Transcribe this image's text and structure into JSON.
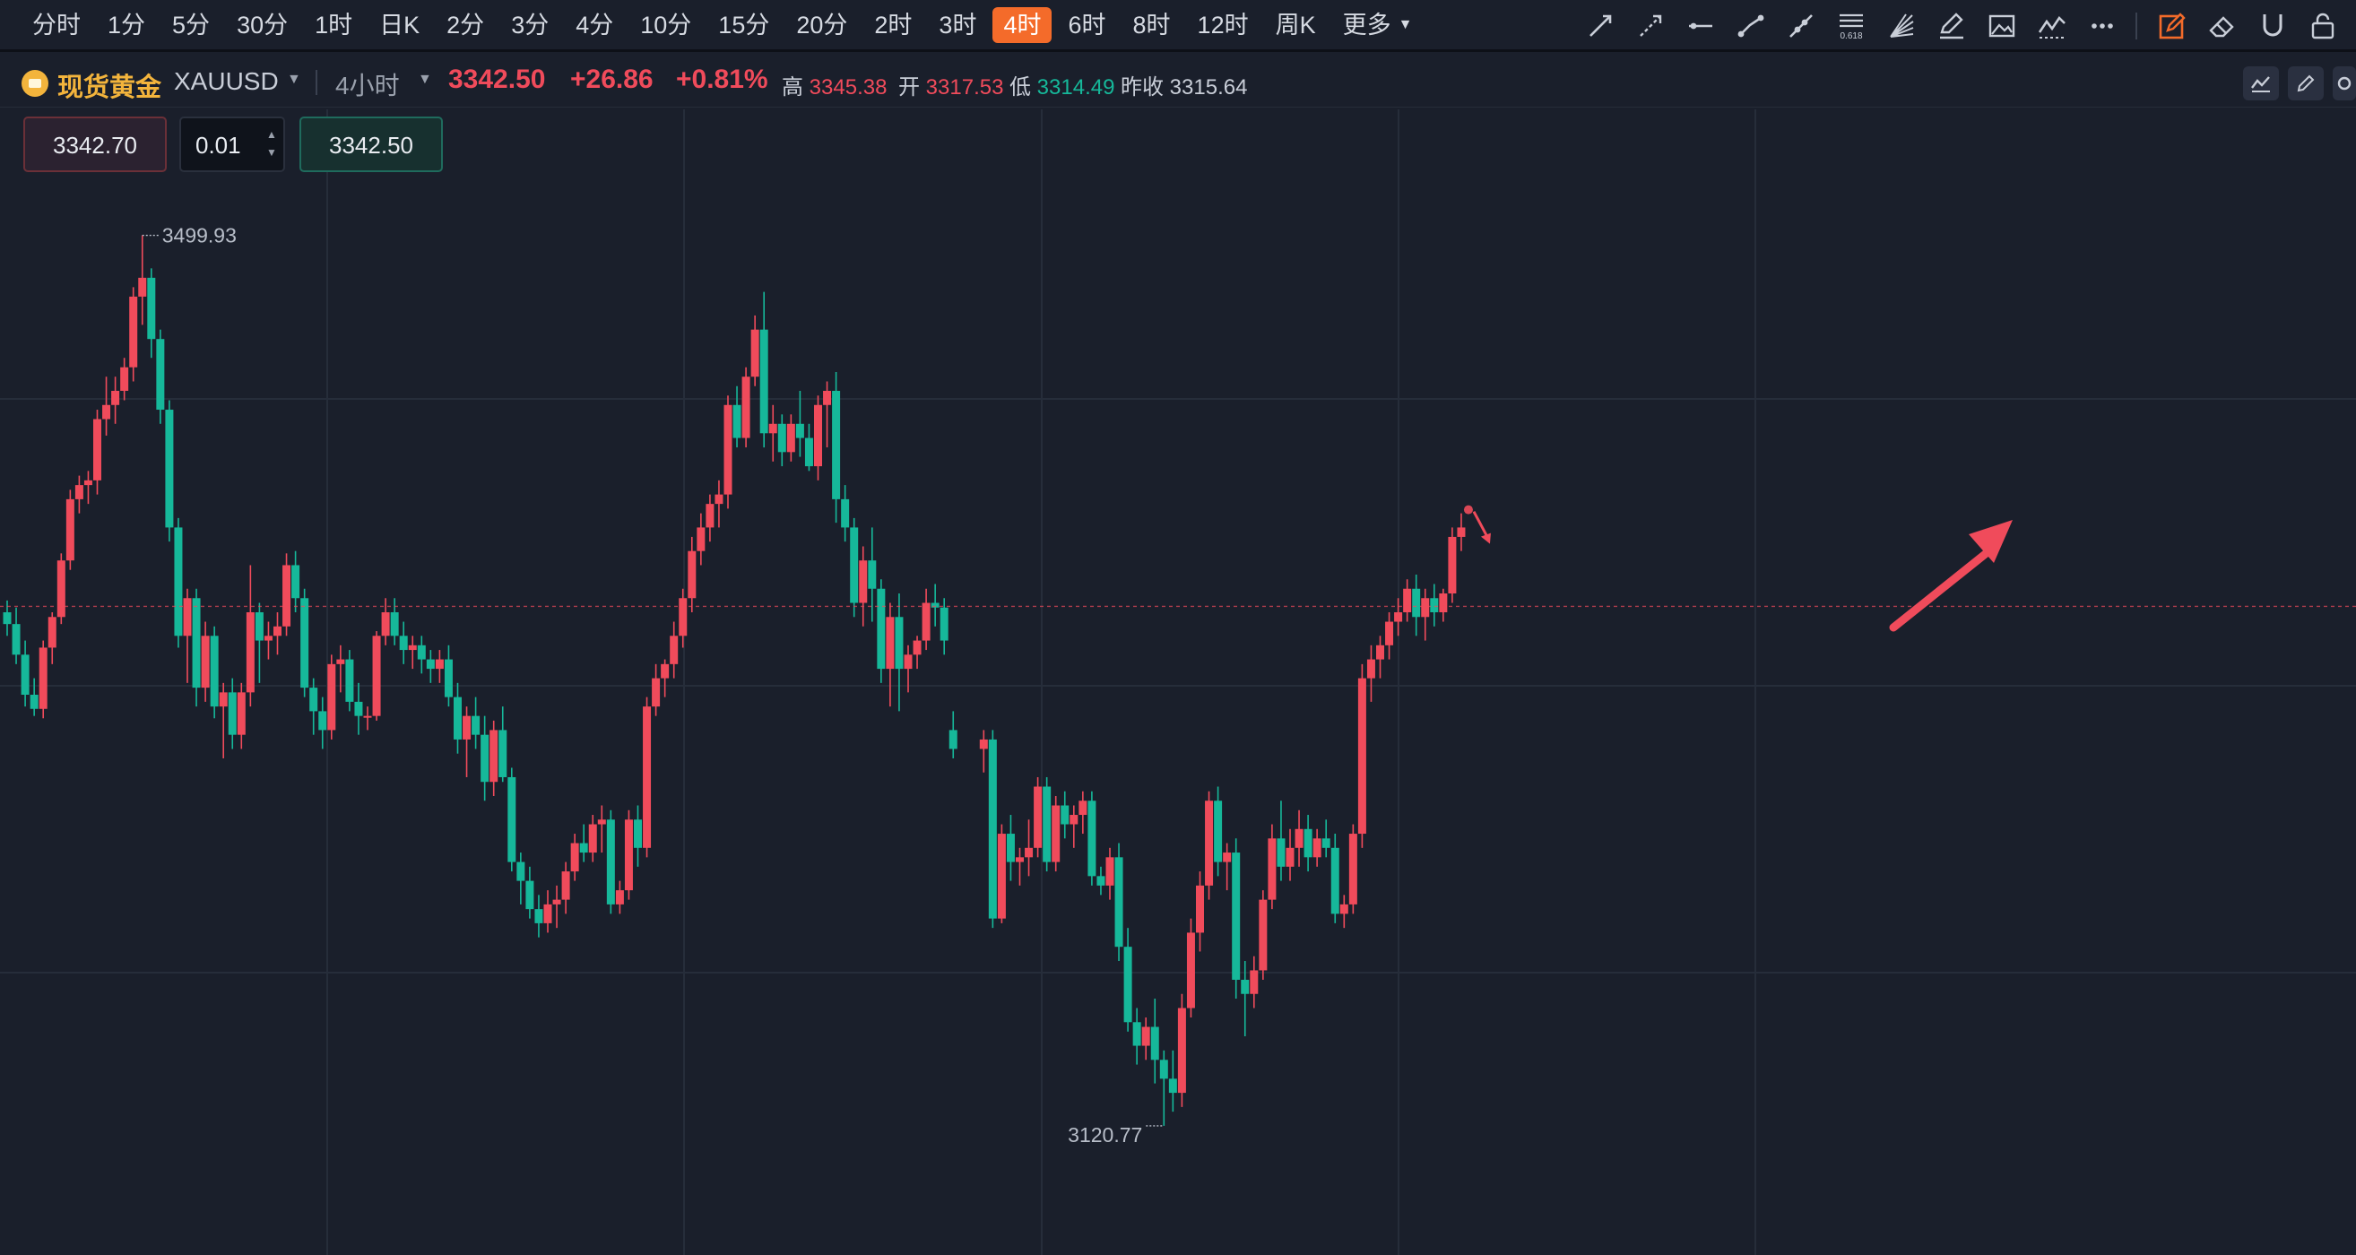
{
  "toolbar": {
    "periods": [
      "分时",
      "1分",
      "5分",
      "30分",
      "1时",
      "日K",
      "2分",
      "3分",
      "4分",
      "10分",
      "15分",
      "20分",
      "2时",
      "3时",
      "4时",
      "6时",
      "8时",
      "12时",
      "周K",
      "更多"
    ],
    "active_period": "4时",
    "drawing_tools": [
      "trend-line-icon",
      "ray-icon",
      "horizontal-line-icon",
      "segment-icon",
      "extended-line-icon",
      "fibonacci-icon",
      "fan-icon",
      "brush-icon",
      "image-icon",
      "wave-icon",
      "more-icon",
      "draw-mode-icon",
      "eraser-icon",
      "magnet-icon",
      "lock-icon"
    ]
  },
  "symbol": {
    "name": "现货黄金",
    "code": "XAUUSD",
    "interval": "4小时",
    "price": "3342.50",
    "change": "+26.86",
    "change_pct": "+0.81%",
    "high_label": "高",
    "high": "3345.38",
    "open_label": "开",
    "open": "3317.53",
    "low_label": "低",
    "low": "3314.49",
    "prev_close_label": "昨收",
    "prev_close": "3315.64"
  },
  "order": {
    "sell_price": "3342.70",
    "quantity": "0.01",
    "buy_price": "3342.50"
  },
  "colors": {
    "up": "#f04b5b",
    "down": "#16b89a",
    "background": "#1a1f2b",
    "accent": "#f46b2a",
    "gold": "#f3b43c"
  },
  "chart_data": {
    "type": "candlestick",
    "instrument": "XAUUSD",
    "interval": "4小时",
    "ylim": [
      3090,
      3520
    ],
    "price_line": 3342.5,
    "annotations": {
      "max": "3499.93",
      "min": "3120.77"
    },
    "candles": [
      [
        3340,
        3345,
        3330,
        3335
      ],
      [
        3335,
        3342,
        3318,
        3322
      ],
      [
        3322,
        3328,
        3300,
        3305
      ],
      [
        3305,
        3312,
        3296,
        3299
      ],
      [
        3299,
        3328,
        3295,
        3325
      ],
      [
        3325,
        3340,
        3318,
        3338
      ],
      [
        3338,
        3365,
        3335,
        3362
      ],
      [
        3362,
        3392,
        3358,
        3388
      ],
      [
        3388,
        3398,
        3382,
        3394
      ],
      [
        3394,
        3400,
        3386,
        3396
      ],
      [
        3396,
        3426,
        3390,
        3422
      ],
      [
        3422,
        3440,
        3415,
        3428
      ],
      [
        3428,
        3440,
        3420,
        3434
      ],
      [
        3434,
        3448,
        3430,
        3444
      ],
      [
        3444,
        3478,
        3438,
        3474
      ],
      [
        3474,
        3500,
        3462,
        3482
      ],
      [
        3482,
        3486,
        3448,
        3456
      ],
      [
        3456,
        3460,
        3420,
        3426
      ],
      [
        3426,
        3430,
        3370,
        3376
      ],
      [
        3376,
        3380,
        3325,
        3330
      ],
      [
        3330,
        3350,
        3310,
        3346
      ],
      [
        3346,
        3350,
        3300,
        3308
      ],
      [
        3308,
        3336,
        3302,
        3330
      ],
      [
        3330,
        3334,
        3295,
        3300
      ],
      [
        3300,
        3310,
        3278,
        3306
      ],
      [
        3306,
        3312,
        3282,
        3288
      ],
      [
        3288,
        3310,
        3282,
        3306
      ],
      [
        3306,
        3360,
        3300,
        3340
      ],
      [
        3340,
        3344,
        3310,
        3328
      ],
      [
        3328,
        3336,
        3320,
        3330
      ],
      [
        3330,
        3340,
        3322,
        3334
      ],
      [
        3334,
        3365,
        3330,
        3360
      ],
      [
        3360,
        3366,
        3340,
        3346
      ],
      [
        3346,
        3350,
        3304,
        3308
      ],
      [
        3308,
        3312,
        3288,
        3298
      ],
      [
        3298,
        3304,
        3282,
        3290
      ],
      [
        3290,
        3322,
        3286,
        3318
      ],
      [
        3318,
        3326,
        3306,
        3320
      ],
      [
        3320,
        3324,
        3298,
        3302
      ],
      [
        3302,
        3310,
        3288,
        3296
      ],
      [
        3296,
        3300,
        3290,
        3296
      ],
      [
        3296,
        3332,
        3294,
        3330
      ],
      [
        3330,
        3346,
        3326,
        3340
      ],
      [
        3340,
        3346,
        3326,
        3330
      ],
      [
        3330,
        3336,
        3318,
        3324
      ],
      [
        3324,
        3330,
        3316,
        3326
      ],
      [
        3326,
        3330,
        3314,
        3320
      ],
      [
        3320,
        3324,
        3310,
        3316
      ],
      [
        3316,
        3324,
        3310,
        3320
      ],
      [
        3320,
        3326,
        3300,
        3304
      ],
      [
        3304,
        3310,
        3280,
        3286
      ],
      [
        3286,
        3300,
        3270,
        3296
      ],
      [
        3296,
        3304,
        3282,
        3288
      ],
      [
        3288,
        3296,
        3260,
        3268
      ],
      [
        3268,
        3294,
        3262,
        3290
      ],
      [
        3290,
        3300,
        3268,
        3270
      ],
      [
        3270,
        3274,
        3230,
        3234
      ],
      [
        3234,
        3238,
        3216,
        3226
      ],
      [
        3226,
        3232,
        3210,
        3214
      ],
      [
        3214,
        3220,
        3202,
        3208
      ],
      [
        3208,
        3222,
        3204,
        3216
      ],
      [
        3216,
        3224,
        3206,
        3218
      ],
      [
        3218,
        3234,
        3212,
        3230
      ],
      [
        3230,
        3246,
        3226,
        3242
      ],
      [
        3242,
        3250,
        3234,
        3238
      ],
      [
        3238,
        3254,
        3234,
        3250
      ],
      [
        3250,
        3258,
        3238,
        3252
      ],
      [
        3252,
        3256,
        3212,
        3216
      ],
      [
        3216,
        3226,
        3212,
        3222
      ],
      [
        3222,
        3256,
        3218,
        3252
      ],
      [
        3252,
        3258,
        3232,
        3240
      ],
      [
        3240,
        3304,
        3236,
        3300
      ],
      [
        3300,
        3318,
        3296,
        3312
      ],
      [
        3312,
        3320,
        3304,
        3318
      ],
      [
        3318,
        3336,
        3312,
        3330
      ],
      [
        3330,
        3350,
        3325,
        3346
      ],
      [
        3346,
        3372,
        3340,
        3366
      ],
      [
        3366,
        3382,
        3360,
        3376
      ],
      [
        3376,
        3390,
        3370,
        3386
      ],
      [
        3386,
        3396,
        3376,
        3390
      ],
      [
        3390,
        3432,
        3384,
        3428
      ],
      [
        3428,
        3436,
        3410,
        3414
      ],
      [
        3414,
        3444,
        3410,
        3440
      ],
      [
        3440,
        3466,
        3436,
        3460
      ],
      [
        3460,
        3476,
        3410,
        3416
      ],
      [
        3416,
        3428,
        3404,
        3420
      ],
      [
        3420,
        3424,
        3402,
        3408
      ],
      [
        3408,
        3424,
        3404,
        3420
      ],
      [
        3420,
        3434,
        3406,
        3414
      ],
      [
        3414,
        3420,
        3400,
        3402
      ],
      [
        3402,
        3432,
        3396,
        3428
      ],
      [
        3428,
        3438,
        3410,
        3434
      ],
      [
        3434,
        3442,
        3378,
        3388
      ],
      [
        3388,
        3394,
        3370,
        3376
      ],
      [
        3376,
        3380,
        3338,
        3344
      ],
      [
        3344,
        3368,
        3334,
        3362
      ],
      [
        3362,
        3376,
        3336,
        3350
      ],
      [
        3350,
        3354,
        3310,
        3316
      ],
      [
        3316,
        3344,
        3300,
        3338
      ],
      [
        3338,
        3348,
        3298,
        3316
      ],
      [
        3316,
        3326,
        3306,
        3322
      ],
      [
        3322,
        3330,
        3316,
        3328
      ],
      [
        3328,
        3350,
        3324,
        3344
      ],
      [
        3344,
        3352,
        3334,
        3342
      ],
      [
        3342,
        3346,
        3322,
        3328
      ],
      [
        3290,
        3298,
        3278,
        3282
      ],
      [
        3282,
        3290,
        3272,
        3286
      ],
      [
        3286,
        3290,
        3206,
        3210
      ],
      [
        3210,
        3250,
        3208,
        3246
      ],
      [
        3246,
        3254,
        3226,
        3234
      ],
      [
        3234,
        3240,
        3224,
        3236
      ],
      [
        3236,
        3252,
        3228,
        3240
      ],
      [
        3240,
        3270,
        3236,
        3266
      ],
      [
        3266,
        3270,
        3230,
        3234
      ],
      [
        3234,
        3262,
        3230,
        3258
      ],
      [
        3258,
        3264,
        3244,
        3250
      ],
      [
        3250,
        3258,
        3240,
        3254
      ],
      [
        3254,
        3264,
        3246,
        3260
      ],
      [
        3260,
        3264,
        3224,
        3228
      ],
      [
        3228,
        3232,
        3220,
        3224
      ],
      [
        3224,
        3240,
        3218,
        3236
      ],
      [
        3236,
        3242,
        3192,
        3198
      ],
      [
        3198,
        3206,
        3162,
        3166
      ],
      [
        3166,
        3172,
        3148,
        3156
      ],
      [
        3156,
        3168,
        3150,
        3164
      ],
      [
        3164,
        3176,
        3140,
        3150
      ],
      [
        3150,
        3154,
        3122,
        3142
      ],
      [
        3142,
        3154,
        3128,
        3136
      ],
      [
        3136,
        3178,
        3130,
        3172
      ],
      [
        3172,
        3210,
        3168,
        3204
      ],
      [
        3204,
        3230,
        3196,
        3224
      ],
      [
        3224,
        3264,
        3218,
        3260
      ],
      [
        3260,
        3266,
        3228,
        3234
      ],
      [
        3234,
        3242,
        3222,
        3238
      ],
      [
        3238,
        3244,
        3176,
        3184
      ],
      [
        3184,
        3192,
        3160,
        3178
      ],
      [
        3178,
        3194,
        3172,
        3188
      ],
      [
        3188,
        3222,
        3184,
        3218
      ],
      [
        3218,
        3250,
        3214,
        3244
      ],
      [
        3244,
        3260,
        3226,
        3232
      ],
      [
        3232,
        3248,
        3226,
        3240
      ],
      [
        3240,
        3256,
        3232,
        3248
      ],
      [
        3248,
        3254,
        3230,
        3236
      ],
      [
        3236,
        3248,
        3232,
        3244
      ],
      [
        3244,
        3252,
        3236,
        3240
      ],
      [
        3240,
        3246,
        3208,
        3212
      ],
      [
        3212,
        3220,
        3206,
        3216
      ],
      [
        3216,
        3250,
        3212,
        3246
      ],
      [
        3246,
        3318,
        3240,
        3312
      ],
      [
        3312,
        3326,
        3302,
        3320
      ],
      [
        3320,
        3330,
        3312,
        3326
      ],
      [
        3326,
        3340,
        3320,
        3336
      ],
      [
        3336,
        3346,
        3330,
        3340
      ],
      [
        3340,
        3354,
        3336,
        3350
      ],
      [
        3350,
        3356,
        3330,
        3338
      ],
      [
        3338,
        3350,
        3328,
        3346
      ],
      [
        3346,
        3352,
        3334,
        3340
      ],
      [
        3340,
        3350,
        3336,
        3348
      ],
      [
        3348,
        3376,
        3344,
        3372
      ],
      [
        3372,
        3382,
        3366,
        3376
      ]
    ]
  }
}
